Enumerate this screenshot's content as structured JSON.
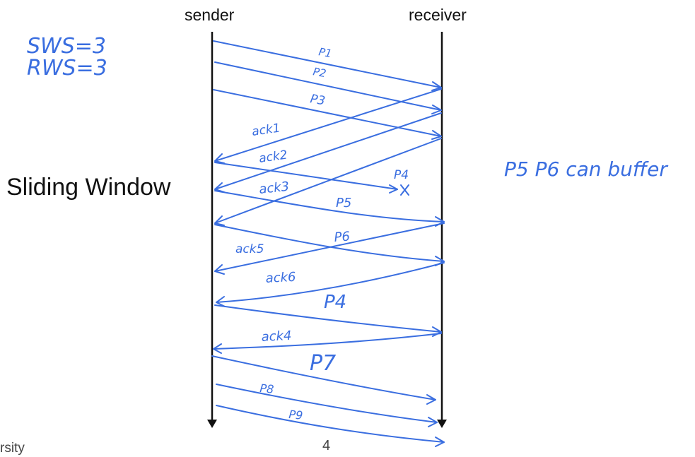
{
  "sender_label": "sender",
  "receiver_label": "receiver",
  "title": "Sliding Window",
  "page_number": "4",
  "footer_fragment": "rsity",
  "annotations": {
    "sws": "SWS=3",
    "rws": "RWS=3",
    "buffer_note": "P5 P6 can buffer"
  },
  "messages": [
    {
      "label": "P1"
    },
    {
      "label": "P2"
    },
    {
      "label": "P3"
    },
    {
      "label": "ack1"
    },
    {
      "label": "ack2"
    },
    {
      "label": "P4"
    },
    {
      "label": "ack3"
    },
    {
      "label": "P5"
    },
    {
      "label": "P6"
    },
    {
      "label": "ack5"
    },
    {
      "label": "ack6"
    },
    {
      "label": "P4"
    },
    {
      "label": "ack4"
    },
    {
      "label": "P7"
    },
    {
      "label": "P8"
    },
    {
      "label": "P9"
    }
  ],
  "colors": {
    "ink": "#3a6ee0",
    "lifeline": "#111111"
  }
}
